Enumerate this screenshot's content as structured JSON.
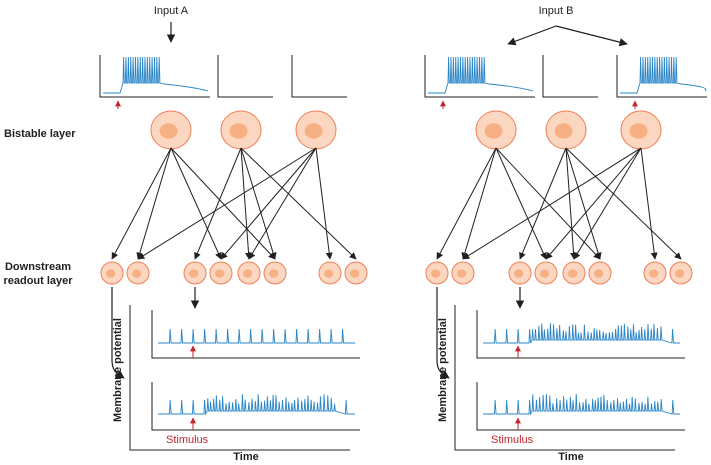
{
  "labels": {
    "input_a": "Input A",
    "input_b": "Input B",
    "bistable_layer": "Bistable layer",
    "downstream_line1": "Downstream",
    "downstream_line2": "readout layer",
    "membrane_potential": "Membrane potential",
    "time": "Time",
    "stimulus": "Stimulus"
  },
  "colors": {
    "trace": "#2a86c8",
    "stimulus_arrow": "#c1272d",
    "cell_fill": "#fbd6c1",
    "cell_stroke": "#f07e55",
    "nucleus": "#f6b083",
    "axis": "#231f20"
  },
  "panels": [
    {
      "input": "A",
      "bistable_active": [
        true,
        false,
        false
      ],
      "readout_top": "baseline",
      "readout_bottom": "elevated"
    },
    {
      "input": "B",
      "bistable_active": [
        true,
        false,
        true
      ],
      "readout_top": "elevated",
      "readout_bottom": "elevated"
    }
  ]
}
